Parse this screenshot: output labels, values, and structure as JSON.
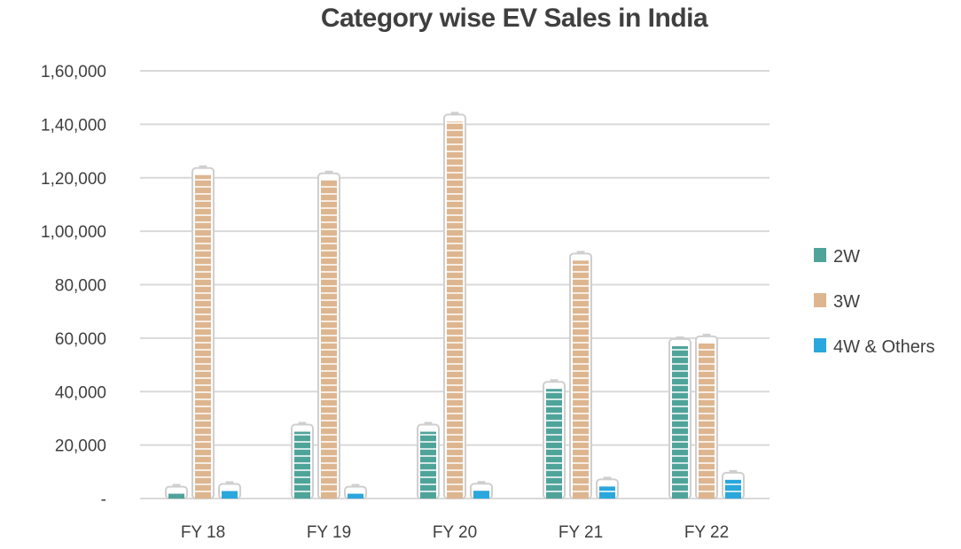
{
  "chart_data": {
    "type": "bar",
    "title": "Category wise EV Sales in India",
    "categories": [
      "FY 18",
      "FY 19",
      "FY 20",
      "FY 21",
      "FY 22"
    ],
    "series": [
      {
        "name": "2W",
        "values": [
          1800,
          25000,
          25000,
          41000,
          57000
        ],
        "color": "#4fa49a"
      },
      {
        "name": "3W",
        "values": [
          121000,
          119000,
          141000,
          89000,
          58000
        ],
        "color": "#ddb68f"
      },
      {
        "name": "4W & Others",
        "values": [
          2800,
          1800,
          2900,
          4500,
          7000
        ],
        "color": "#2aa7dd"
      }
    ],
    "ylim": [
      0,
      160000
    ],
    "yticks": [
      0,
      20000,
      40000,
      60000,
      80000,
      100000,
      120000,
      140000,
      160000
    ],
    "ytick_labels": [
      "-",
      "20,000",
      "40,000",
      "60,000",
      "80,000",
      "1,00,000",
      "1,20,000",
      "1,40,000",
      "1,60,000"
    ],
    "xlabel": "",
    "ylabel": "",
    "grid": true,
    "legend_position": "right",
    "bar_style": "battery"
  }
}
